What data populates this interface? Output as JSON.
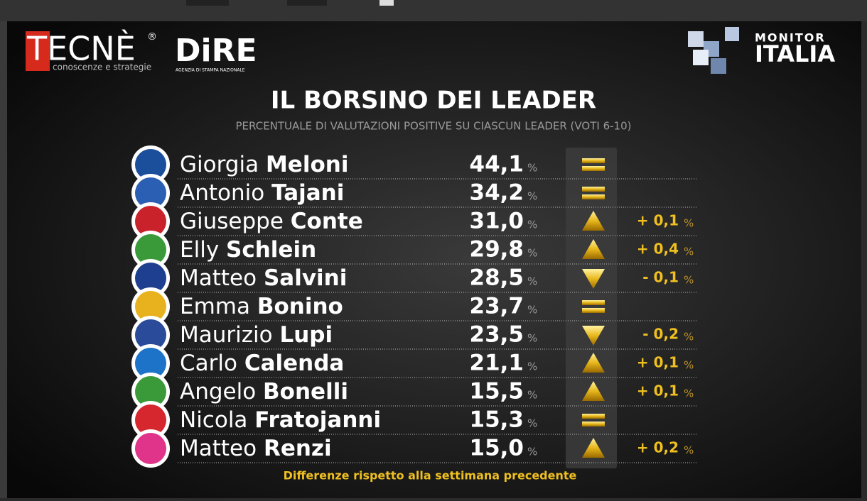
{
  "logos": {
    "tecne": "TECNÈ",
    "tecne_reg": "®",
    "tecne_sub": "conoscenze e strategie",
    "dire": "DiRE",
    "dire_sub": "AGENZIA DI STAMPA NAZIONALE",
    "monitor": "MONITOR",
    "italia": "ITALIA"
  },
  "title": "IL BORSINO DEI LEADER",
  "subtitle": "PERCENTUALE DI VALUTAZIONI POSITIVE SU CIASCUN LEADER (VOTI 6-10)",
  "leaders": [
    {
      "first": "Giorgia",
      "last": "Meloni",
      "value": "44,1",
      "unit": "%",
      "trend": "equal",
      "logo_color": "#1b4f9c"
    },
    {
      "first": "Antonio",
      "last": "Tajani",
      "value": "34,2",
      "unit": "%",
      "trend": "equal",
      "logo_color": "#2b5fb3"
    },
    {
      "first": "Giuseppe",
      "last": "Conte",
      "value": "31,0",
      "unit": "%",
      "trend": "up",
      "change": "+ 0,1",
      "change_unit": "%",
      "logo_color": "#c9222a"
    },
    {
      "first": "Elly",
      "last": "Schlein",
      "value": "29,8",
      "unit": "%",
      "trend": "up",
      "change": "+ 0,4",
      "change_unit": "%",
      "logo_color": "#3a9a3a"
    },
    {
      "first": "Matteo",
      "last": "Salvini",
      "value": "28,5",
      "unit": "%",
      "trend": "down",
      "change": "- 0,1",
      "change_unit": "%",
      "logo_color": "#1e3f8f"
    },
    {
      "first": "Emma",
      "last": "Bonino",
      "value": "23,7",
      "unit": "%",
      "trend": "equal",
      "logo_color": "#e8b21f"
    },
    {
      "first": "Maurizio",
      "last": "Lupi",
      "value": "23,5",
      "unit": "%",
      "trend": "down",
      "change": "- 0,2",
      "change_unit": "%",
      "logo_color": "#2a4a9a"
    },
    {
      "first": "Carlo",
      "last": "Calenda",
      "value": "21,1",
      "unit": "%",
      "trend": "up",
      "change": "+ 0,1",
      "change_unit": "%",
      "logo_color": "#1d73c8"
    },
    {
      "first": "Angelo",
      "last": "Bonelli",
      "value": "15,5",
      "unit": "%",
      "trend": "up",
      "change": "+ 0,1",
      "change_unit": "%",
      "logo_color": "#3a9a3a"
    },
    {
      "first": "Nicola",
      "last": "Fratojanni",
      "value": "15,3",
      "unit": "%",
      "trend": "equal",
      "logo_color": "#d6262e"
    },
    {
      "first": "Matteo",
      "last": "Renzi",
      "value": "15,0",
      "unit": "%",
      "trend": "up",
      "change": "+ 0,2",
      "change_unit": "%",
      "logo_color": "#e0338a"
    }
  ],
  "footnote": "Differenze rispetto alla settimana precedente"
}
